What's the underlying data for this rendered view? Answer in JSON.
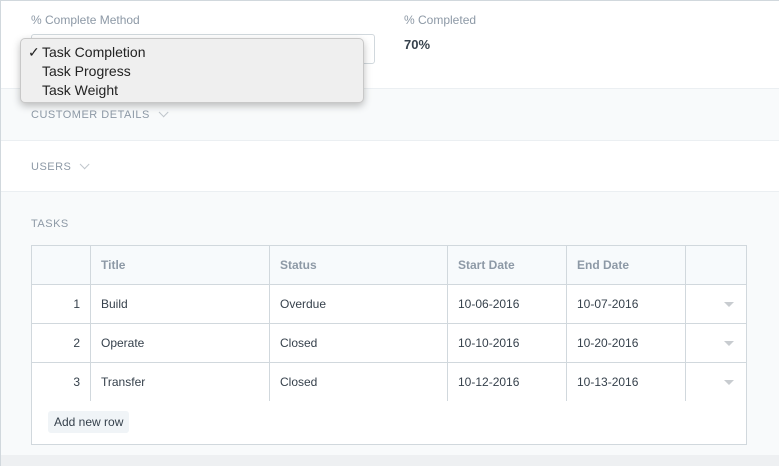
{
  "fields": {
    "method_label": "% Complete Method",
    "completed_label": "% Completed",
    "completed_value": "70%"
  },
  "dropdown": {
    "options": [
      {
        "label": "Task Completion",
        "checked": true
      },
      {
        "label": "Task Progress",
        "checked": false
      },
      {
        "label": "Task Weight",
        "checked": false
      }
    ],
    "check": "✓"
  },
  "sections": {
    "customer": "CUSTOMER DETAILS",
    "users": "USERS",
    "tasks": "TASKS"
  },
  "table": {
    "headers": [
      "",
      "Title",
      "Status",
      "Start Date",
      "End Date",
      ""
    ],
    "rows": [
      [
        "1",
        "Build",
        "Overdue",
        "10-06-2016",
        "10-07-2016"
      ],
      [
        "2",
        "Operate",
        "Closed",
        "10-10-2016",
        "10-20-2016"
      ],
      [
        "3",
        "Transfer",
        "Closed",
        "10-12-2016",
        "10-13-2016"
      ]
    ],
    "add_row": "Add new row"
  }
}
